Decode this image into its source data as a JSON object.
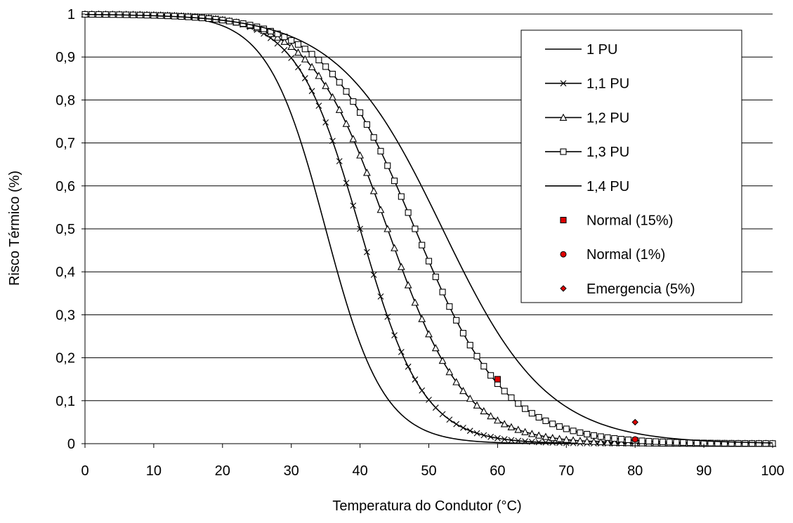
{
  "chart_data": {
    "type": "line",
    "xlabel": "Temperatura do Condutor (°C)",
    "ylabel": "Risco Térmico (%)",
    "xlim": [
      0,
      100
    ],
    "ylim": [
      0,
      1
    ],
    "xticks": [
      "0",
      "10",
      "20",
      "30",
      "40",
      "50",
      "60",
      "70",
      "80",
      "90",
      "100"
    ],
    "yticks": [
      "0",
      "0,1",
      "0,2",
      "0,3",
      "0,4",
      "0,5",
      "0,6",
      "0,7",
      "0,8",
      "0,9",
      "1"
    ],
    "grid": "horizontal",
    "legend_position": "top-right",
    "series": [
      {
        "name": "1 PU",
        "marker": "none",
        "color": "#000000",
        "logistic": {
          "mid": 35.0,
          "scale": 4.2
        },
        "x": [
          0,
          10,
          20,
          28,
          30,
          32,
          34,
          36,
          38,
          40,
          44,
          48,
          52,
          56,
          60,
          70,
          80,
          90,
          100
        ],
        "y": [
          1.0,
          1.0,
          1.0,
          0.99,
          0.97,
          0.89,
          0.74,
          0.55,
          0.37,
          0.22,
          0.1,
          0.04,
          0.02,
          0.01,
          0.0,
          0.0,
          0.0,
          0.0,
          0.0
        ]
      },
      {
        "name": "1,1 PU",
        "marker": "x",
        "color": "#000000",
        "logistic": {
          "mid": 40.0,
          "scale": 4.6
        },
        "x": [
          0,
          10,
          20,
          30,
          32,
          34,
          36,
          38,
          40,
          42,
          44,
          46,
          48,
          50,
          55,
          60,
          65,
          70,
          80,
          90,
          100
        ],
        "y": [
          1.0,
          1.0,
          1.0,
          0.96,
          0.9,
          0.82,
          0.72,
          0.62,
          0.52,
          0.43,
          0.35,
          0.28,
          0.21,
          0.16,
          0.1,
          0.06,
          0.03,
          0.02,
          0.01,
          0.0,
          0.0
        ]
      },
      {
        "name": "1,2 PU",
        "marker": "triangle",
        "color": "#000000",
        "logistic": {
          "mid": 44.0,
          "scale": 5.6
        },
        "x": [
          0,
          10,
          20,
          30,
          32,
          36,
          40,
          44,
          46,
          48,
          50,
          55,
          60,
          65,
          70,
          80,
          90,
          100
        ],
        "y": [
          1.0,
          1.0,
          1.0,
          0.99,
          0.97,
          0.88,
          0.68,
          0.5,
          0.42,
          0.35,
          0.3,
          0.19,
          0.12,
          0.07,
          0.05,
          0.02,
          0.01,
          0.01
        ]
      },
      {
        "name": "1,3 PU",
        "marker": "square",
        "color": "#000000",
        "logistic": {
          "mid": 48.0,
          "scale": 6.6
        },
        "x": [
          0,
          10,
          20,
          30,
          32,
          36,
          40,
          44,
          48,
          50,
          52,
          56,
          60,
          64,
          70,
          80,
          90,
          100
        ],
        "y": [
          1.0,
          1.0,
          1.0,
          1.0,
          0.99,
          0.93,
          0.8,
          0.64,
          0.5,
          0.43,
          0.37,
          0.27,
          0.2,
          0.15,
          0.09,
          0.04,
          0.02,
          0.01
        ]
      },
      {
        "name": "1,4 PU",
        "marker": "none",
        "color": "#000000",
        "logistic": {
          "mid": 52.0,
          "scale": 7.6
        },
        "x": [
          0,
          10,
          20,
          30,
          34,
          38,
          42,
          46,
          50,
          52,
          56,
          60,
          64,
          70,
          80,
          90,
          100
        ],
        "y": [
          1.0,
          1.0,
          1.0,
          1.0,
          0.99,
          0.97,
          0.92,
          0.75,
          0.56,
          0.5,
          0.4,
          0.31,
          0.23,
          0.15,
          0.07,
          0.03,
          0.02
        ]
      }
    ],
    "points": [
      {
        "name": "Normal (15%)",
        "marker": "square",
        "color": "#e00000",
        "x": 60,
        "y": 0.15
      },
      {
        "name": "Normal (1%)",
        "marker": "circle",
        "color": "#e00000",
        "x": 80,
        "y": 0.01
      },
      {
        "name": "Emergencia (5%)",
        "marker": "diamond",
        "color": "#e00000",
        "x": 80,
        "y": 0.05
      }
    ]
  }
}
